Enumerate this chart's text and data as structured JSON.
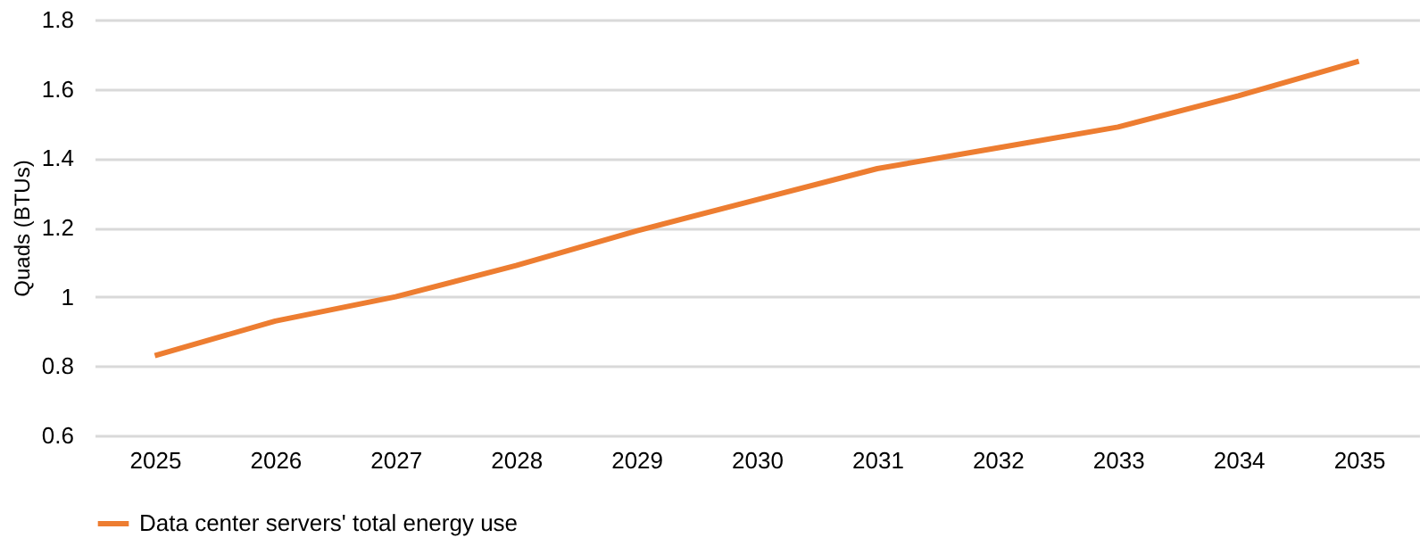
{
  "chart_data": {
    "type": "line",
    "ylabel": "Quads (BTUs)",
    "categories": [
      "2025",
      "2026",
      "2027",
      "2028",
      "2029",
      "2030",
      "2031",
      "2032",
      "2033",
      "2034",
      "2035"
    ],
    "series": [
      {
        "name": "Data center servers' total energy use",
        "color": "#ed7d31",
        "values": [
          0.83,
          0.93,
          1.0,
          1.09,
          1.19,
          1.28,
          1.37,
          1.43,
          1.49,
          1.58,
          1.68
        ]
      }
    ],
    "ylim": [
      0.6,
      1.8
    ],
    "yticks": [
      0.6,
      0.8,
      1,
      1.2,
      1.4,
      1.6,
      1.8
    ],
    "grid": "y",
    "legend": "bottom",
    "marker": "none",
    "line_style": "solid"
  }
}
